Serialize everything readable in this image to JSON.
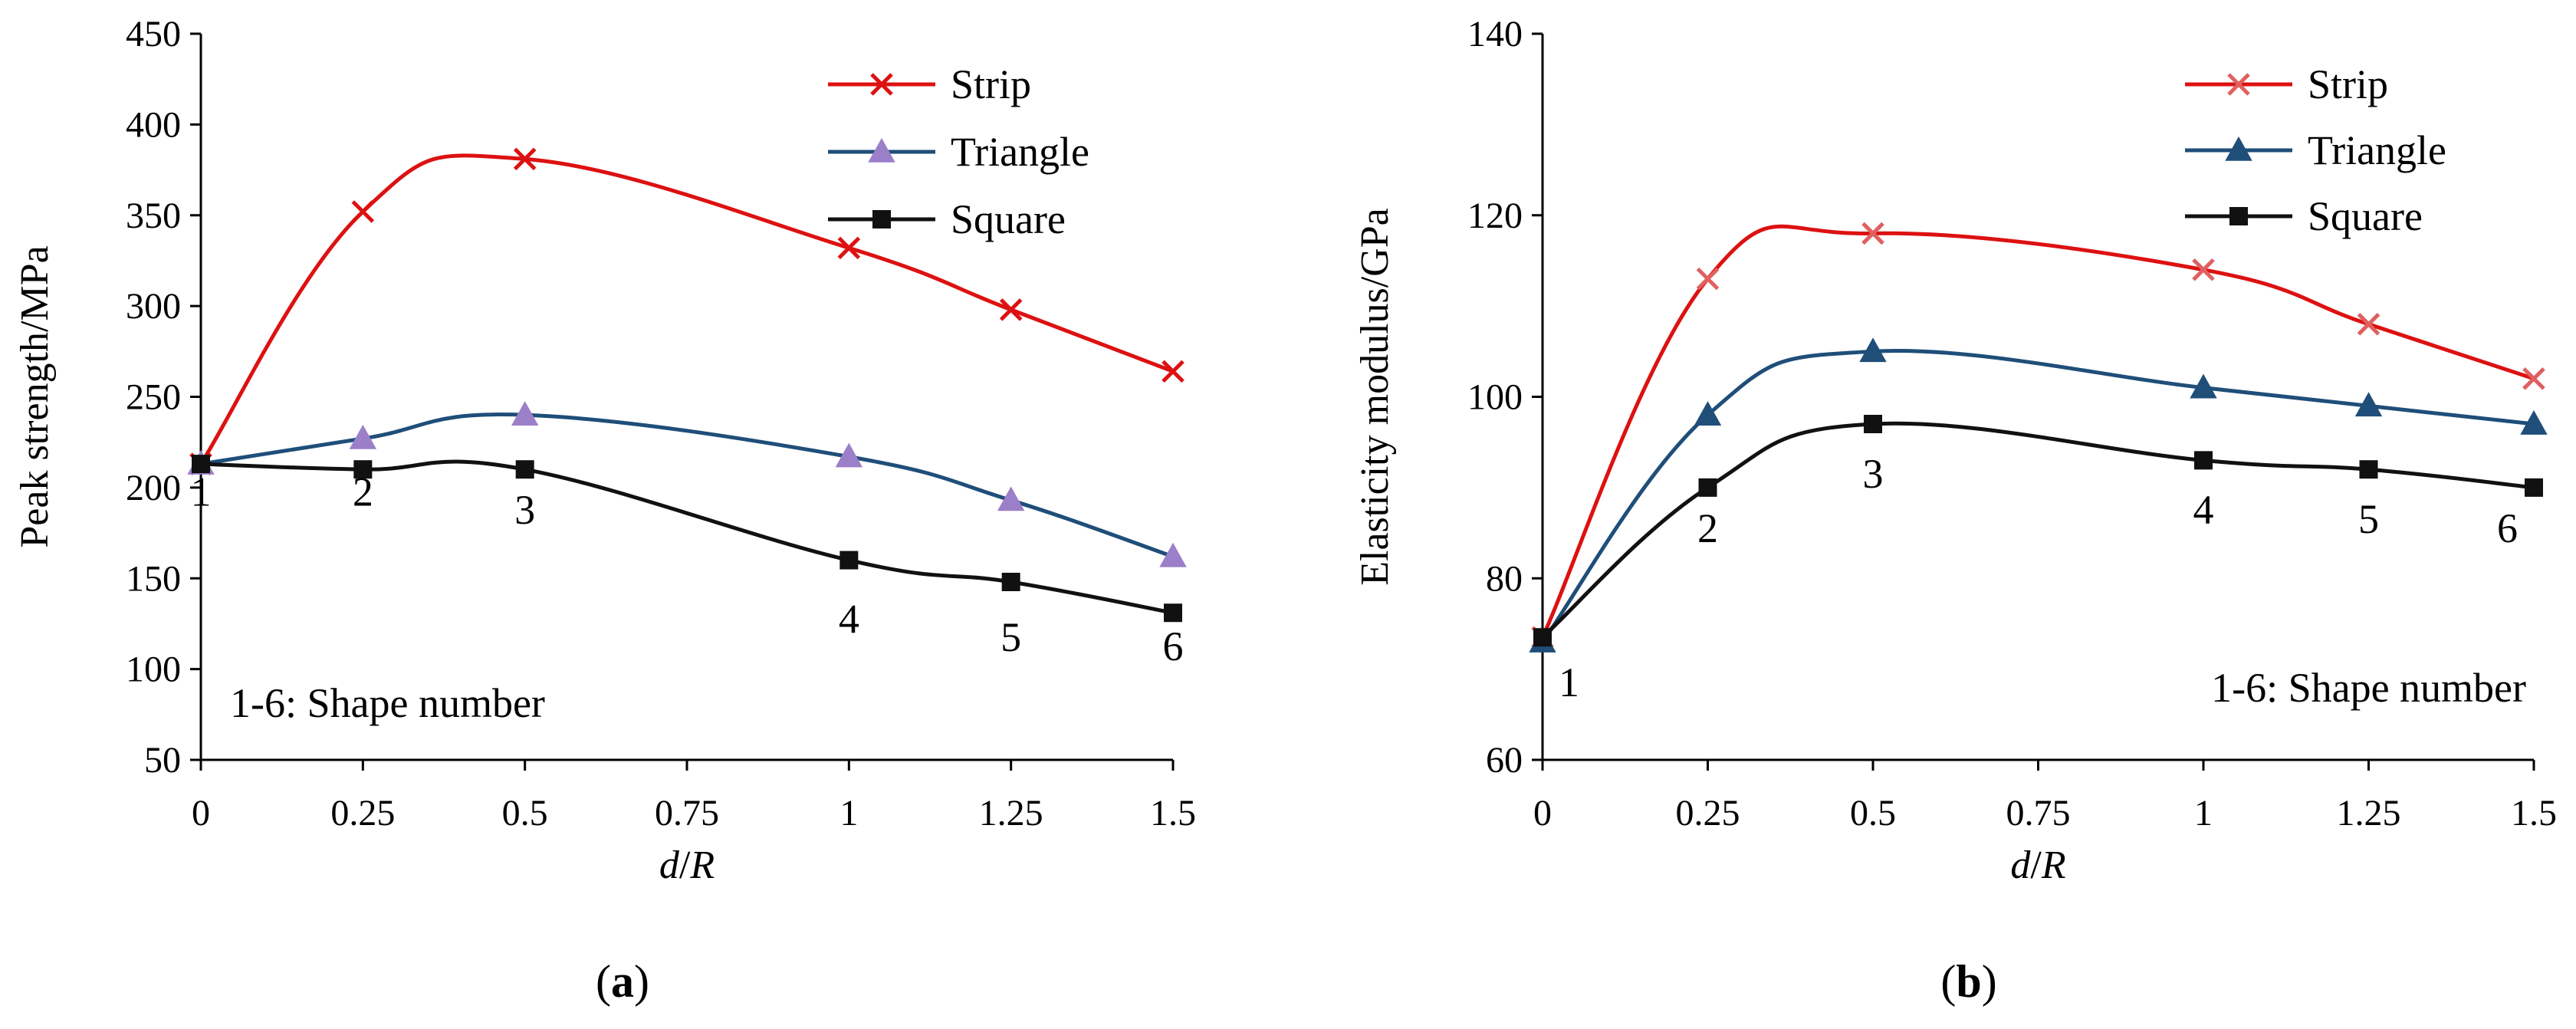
{
  "chart_data": [
    {
      "type": "line",
      "panel_label": "a",
      "x": [
        0,
        0.25,
        0.5,
        1,
        1.25,
        1.5
      ],
      "xlim": [
        0,
        1.5
      ],
      "x_ticks": [
        "0",
        "0.25",
        "0.5",
        "0.75",
        "1",
        "1.25",
        "1.5"
      ],
      "x_tick_values": [
        0,
        0.25,
        0.5,
        0.75,
        1,
        1.25,
        1.5
      ],
      "ylim": [
        50,
        450
      ],
      "y_ticks": [
        "50",
        "100",
        "150",
        "200",
        "250",
        "300",
        "350",
        "400",
        "450"
      ],
      "y_tick_values": [
        50,
        100,
        150,
        200,
        250,
        300,
        350,
        400,
        450
      ],
      "xlabel_parts": [
        "d",
        "/",
        "R"
      ],
      "ylabel": "Peak strength/MPa",
      "note": "1-6: Shape number",
      "shape_numbers": [
        {
          "label": "1",
          "x": 0,
          "y": 190
        },
        {
          "label": "2",
          "x": 0.25,
          "y": 190
        },
        {
          "label": "3",
          "x": 0.5,
          "y": 180
        },
        {
          "label": "4",
          "x": 1,
          "y": 120
        },
        {
          "label": "5",
          "x": 1.25,
          "y": 110
        },
        {
          "label": "6",
          "x": 1.5,
          "y": 105
        }
      ],
      "series": [
        {
          "name": "Strip",
          "marker": "x",
          "color": "#dd1111",
          "marker_color": "#dd1111",
          "values": [
            213,
            352,
            381,
            332,
            298,
            264
          ]
        },
        {
          "name": "Triangle",
          "marker": "triangle",
          "color": "#1f4e79",
          "marker_color": "#9b7fc8",
          "values": [
            213,
            227,
            240,
            217,
            193,
            162
          ]
        },
        {
          "name": "Square",
          "marker": "square",
          "color": "#111111",
          "marker_color": "#111111",
          "values": [
            213,
            210,
            210,
            160,
            148,
            131
          ]
        }
      ]
    },
    {
      "type": "line",
      "panel_label": "b",
      "x": [
        0,
        0.25,
        0.5,
        1,
        1.25,
        1.5
      ],
      "xlim": [
        0,
        1.5
      ],
      "x_ticks": [
        "0",
        "0.25",
        "0.5",
        "0.75",
        "1",
        "1.25",
        "1.5"
      ],
      "x_tick_values": [
        0,
        0.25,
        0.5,
        0.75,
        1,
        1.25,
        1.5
      ],
      "ylim": [
        60,
        140
      ],
      "y_ticks": [
        "60",
        "80",
        "100",
        "120",
        "140"
      ],
      "y_tick_values": [
        60,
        80,
        100,
        120,
        140
      ],
      "xlabel_parts": [
        "d",
        "/",
        "R"
      ],
      "ylabel": "Elasticity modulus/GPa",
      "note": "1-6: Shape number",
      "shape_numbers": [
        {
          "label": "1",
          "x": 0.04,
          "y": 67
        },
        {
          "label": "2",
          "x": 0.25,
          "y": 84
        },
        {
          "label": "3",
          "x": 0.5,
          "y": 90
        },
        {
          "label": "4",
          "x": 1,
          "y": 86
        },
        {
          "label": "5",
          "x": 1.25,
          "y": 85
        },
        {
          "label": "6",
          "x": 1.46,
          "y": 84
        }
      ],
      "series": [
        {
          "name": "Strip",
          "marker": "x",
          "color": "#dd1111",
          "marker_color": "#e06060",
          "values": [
            73.5,
            113,
            118,
            114,
            108,
            102
          ]
        },
        {
          "name": "Triangle",
          "marker": "triangle",
          "color": "#1f4e79",
          "marker_color": "#1f4e79",
          "values": [
            73,
            98,
            105,
            101,
            99,
            97
          ]
        },
        {
          "name": "Square",
          "marker": "square",
          "color": "#111111",
          "marker_color": "#111111",
          "values": [
            73.5,
            90,
            97,
            93,
            92,
            90
          ]
        }
      ]
    }
  ]
}
